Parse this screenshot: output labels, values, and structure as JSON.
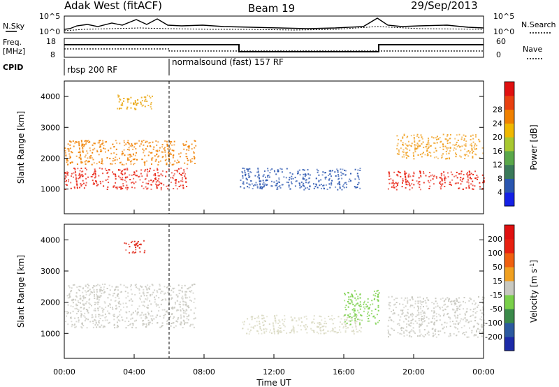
{
  "header": {
    "station": "Adak West (fitACF)",
    "beam": "Beam 19",
    "date": "29/Sep/2013"
  },
  "panels": {
    "nsky": {
      "left_label": "N.Sky",
      "right_label": "N.Search",
      "left_ticks": [
        "10^5",
        "10^0"
      ],
      "right_ticks": [
        "10^5",
        "10^0"
      ]
    },
    "freq": {
      "left_label_line1": "Freq.",
      "left_label_line2": "[MHz]",
      "right_label": "Nave",
      "left_ticks": [
        "18",
        "8"
      ],
      "right_ticks": [
        "60",
        "0"
      ]
    },
    "cpid": {
      "label": "CPID",
      "segments": [
        "rbsp 200 RF",
        "normalsound (fast) 157 RF"
      ]
    }
  },
  "xaxis": {
    "label": "Time UT",
    "ticks": [
      "00:00",
      "04:00",
      "08:00",
      "12:00",
      "16:00",
      "20:00",
      "00:00"
    ]
  },
  "chart_data": [
    {
      "type": "heatmap",
      "ylabel": "Slant Range [km]",
      "yticks": [
        1000,
        2000,
        3000,
        4000
      ],
      "ylim": [
        200,
        4500
      ],
      "xlim_hours": [
        0,
        24
      ],
      "colorbar": {
        "label": "Power [dB]",
        "ticks": [
          "4",
          "8",
          "12",
          "16",
          "20",
          "24",
          "28"
        ],
        "colors": [
          "#1420e6",
          "#2a56b0",
          "#3a7a5a",
          "#5aa84a",
          "#a8c830",
          "#f0b800",
          "#f08000",
          "#e84010",
          "#e01010"
        ]
      },
      "echo_regions": [
        {
          "name": "E-region band (morning)",
          "t": [
            0,
            7
          ],
          "r": [
            1000,
            1700
          ],
          "color": "#e82010"
        },
        {
          "name": "morning upper band",
          "t": [
            0,
            7.5
          ],
          "r": [
            1800,
            2600
          ],
          "color": "#f08000"
        },
        {
          "name": "morning high patch",
          "t": [
            3,
            5
          ],
          "r": [
            3600,
            4100
          ],
          "color": "#e8a000"
        },
        {
          "name": "midday band",
          "t": [
            10,
            17
          ],
          "r": [
            1000,
            1700
          ],
          "color": "#2a56b0"
        },
        {
          "name": "evening band",
          "t": [
            18.5,
            24
          ],
          "r": [
            1000,
            1600
          ],
          "color": "#e82010"
        },
        {
          "name": "evening upper band",
          "t": [
            19,
            24
          ],
          "r": [
            2000,
            2800
          ],
          "color": "#f0a020"
        }
      ]
    },
    {
      "type": "heatmap",
      "ylabel": "Slant Range [km]",
      "yticks": [
        1000,
        2000,
        3000,
        4000
      ],
      "ylim": [
        200,
        4500
      ],
      "xlim_hours": [
        0,
        24
      ],
      "colorbar": {
        "label": "Velocity [m s^-1]",
        "ticks": [
          "200",
          "100",
          "50",
          "15",
          "-15",
          "-50",
          "-100",
          "-200"
        ],
        "colors": [
          "#1c2aa8",
          "#2c5aa0",
          "#3a8a4a",
          "#7ad04a",
          "#c8c8c0",
          "#f0a020",
          "#f06010",
          "#e82010",
          "#e01010"
        ]
      },
      "echo_regions": [
        {
          "name": "ground scatter morning",
          "t": [
            0,
            7.5
          ],
          "r": [
            1200,
            2600
          ],
          "color": "#c8c8c0"
        },
        {
          "name": "high patch",
          "t": [
            3.3,
            4.6
          ],
          "r": [
            3600,
            4000
          ],
          "color": "#e02010"
        },
        {
          "name": "midday ground scatter",
          "t": [
            10,
            17
          ],
          "r": [
            1000,
            1600
          ],
          "color": "#d8d8c0"
        },
        {
          "name": "green streak",
          "t": [
            16,
            18
          ],
          "r": [
            1300,
            2400
          ],
          "color": "#7ad04a"
        },
        {
          "name": "evening ground scatter",
          "t": [
            18.5,
            24
          ],
          "r": [
            900,
            2200
          ],
          "color": "#c8c8c0"
        }
      ]
    }
  ]
}
